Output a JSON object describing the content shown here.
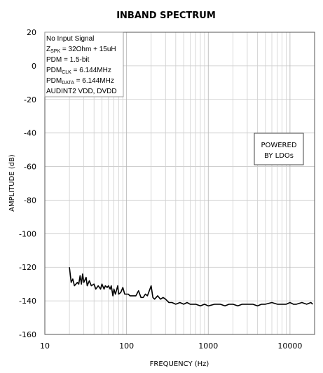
{
  "chart_data": {
    "type": "line",
    "title": "INBAND SPECTRUM",
    "xlabel": "FREQUENCY (Hz)",
    "ylabel": "AMPLITUDE (dB)",
    "x_scale": "log",
    "xlim": [
      10,
      20000
    ],
    "ylim": [
      -160,
      20
    ],
    "x_tick_labels": [
      "10",
      "100",
      "1000",
      "10000"
    ],
    "y_tick_labels": [
      "20",
      "0",
      "-20",
      "-40",
      "-60",
      "-80",
      "-100",
      "-120",
      "-140",
      "-160"
    ],
    "grid": true,
    "annotation_lines": [
      {
        "main": "No Input Signal"
      },
      {
        "main": "Z",
        "sub": "SPK",
        "rest": " = 32Ohm + 15uH"
      },
      {
        "main": "PDM = 1.5-bit"
      },
      {
        "main": "PDM",
        "sub": "CLK",
        "rest": " = 6.144MHz"
      },
      {
        "main": "PDM",
        "sub": "DATA",
        "rest": " = 6.144MHz"
      },
      {
        "main": "AUDINT2  VDD, DVDD"
      }
    ],
    "powered_box": [
      "POWERED",
      "BY LDOs"
    ],
    "series": [
      {
        "x": [
          20,
          21,
          22,
          23,
          25,
          26,
          27,
          28,
          29,
          30,
          32,
          33,
          35,
          37,
          40,
          42,
          45,
          48,
          50,
          53,
          55,
          58,
          60,
          63,
          65,
          68,
          70,
          73,
          75,
          78,
          80,
          85,
          90,
          95,
          100,
          105,
          110,
          115,
          120,
          130,
          140,
          150,
          160,
          170,
          180,
          190,
          200,
          210,
          220,
          240,
          260,
          280,
          300,
          330,
          360,
          400,
          450,
          500,
          550,
          600,
          700,
          800,
          900,
          1000,
          1200,
          1400,
          1600,
          1800,
          2000,
          2300,
          2600,
          3000,
          3500,
          4000,
          4500,
          5000,
          6000,
          7000,
          8000,
          9000,
          10000,
          11000,
          12000,
          14000,
          16000,
          18000,
          19000
        ],
        "y": [
          -120,
          -129,
          -127,
          -131,
          -129,
          -130,
          -125,
          -130,
          -124,
          -129,
          -126,
          -131,
          -128,
          -131,
          -130,
          -133,
          -131,
          -133,
          -130,
          -133,
          -131,
          -132,
          -131,
          -133,
          -131,
          -137,
          -133,
          -136,
          -134,
          -131,
          -136,
          -135,
          -132,
          -136,
          -136,
          -136,
          -137,
          -137,
          -137,
          -137,
          -134,
          -138,
          -138,
          -136,
          -137,
          -134,
          -131,
          -138,
          -139,
          -137,
          -139,
          -138,
          -139,
          -141,
          -141,
          -142,
          -141,
          -142,
          -141,
          -142,
          -142,
          -143,
          -142,
          -143,
          -142,
          -142,
          -143,
          -142,
          -142,
          -143,
          -142,
          -142,
          -142,
          -143,
          -142,
          -142,
          -141,
          -142,
          -142,
          -142,
          -141,
          -142,
          -142,
          -141,
          -142,
          -141,
          -142
        ]
      }
    ]
  }
}
